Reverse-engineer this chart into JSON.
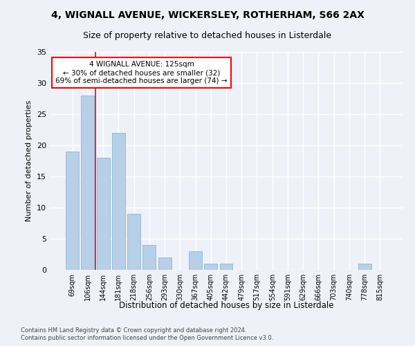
{
  "title1": "4, WIGNALL AVENUE, WICKERSLEY, ROTHERHAM, S66 2AX",
  "title2": "Size of property relative to detached houses in Listerdale",
  "xlabel": "Distribution of detached houses by size in Listerdale",
  "ylabel": "Number of detached properties",
  "categories": [
    "69sqm",
    "106sqm",
    "144sqm",
    "181sqm",
    "218sqm",
    "256sqm",
    "293sqm",
    "330sqm",
    "367sqm",
    "405sqm",
    "442sqm",
    "479sqm",
    "517sqm",
    "554sqm",
    "591sqm",
    "629sqm",
    "666sqm",
    "703sqm",
    "740sqm",
    "778sqm",
    "815sqm"
  ],
  "values": [
    19,
    28,
    18,
    22,
    9,
    4,
    2,
    0,
    3,
    1,
    1,
    0,
    0,
    0,
    0,
    0,
    0,
    0,
    0,
    1,
    0
  ],
  "bar_color": "#b8cfe8",
  "bar_edge_color": "#7aafd4",
  "annotation_text": "4 WIGNALL AVENUE: 125sqm\n← 30% of detached houses are smaller (32)\n69% of semi-detached houses are larger (74) →",
  "annotation_box_color": "white",
  "annotation_box_edge_color": "red",
  "vline_color": "red",
  "vline_pos": 1.52,
  "ylim": [
    0,
    35
  ],
  "yticks": [
    0,
    5,
    10,
    15,
    20,
    25,
    30,
    35
  ],
  "footnote1": "Contains HM Land Registry data © Crown copyright and database right 2024.",
  "footnote2": "Contains public sector information licensed under the Open Government Licence v3.0.",
  "background_color": "#eef2f8",
  "grid_color": "#ffffff",
  "title_fontsize": 10,
  "subtitle_fontsize": 9,
  "bar_width": 0.85
}
